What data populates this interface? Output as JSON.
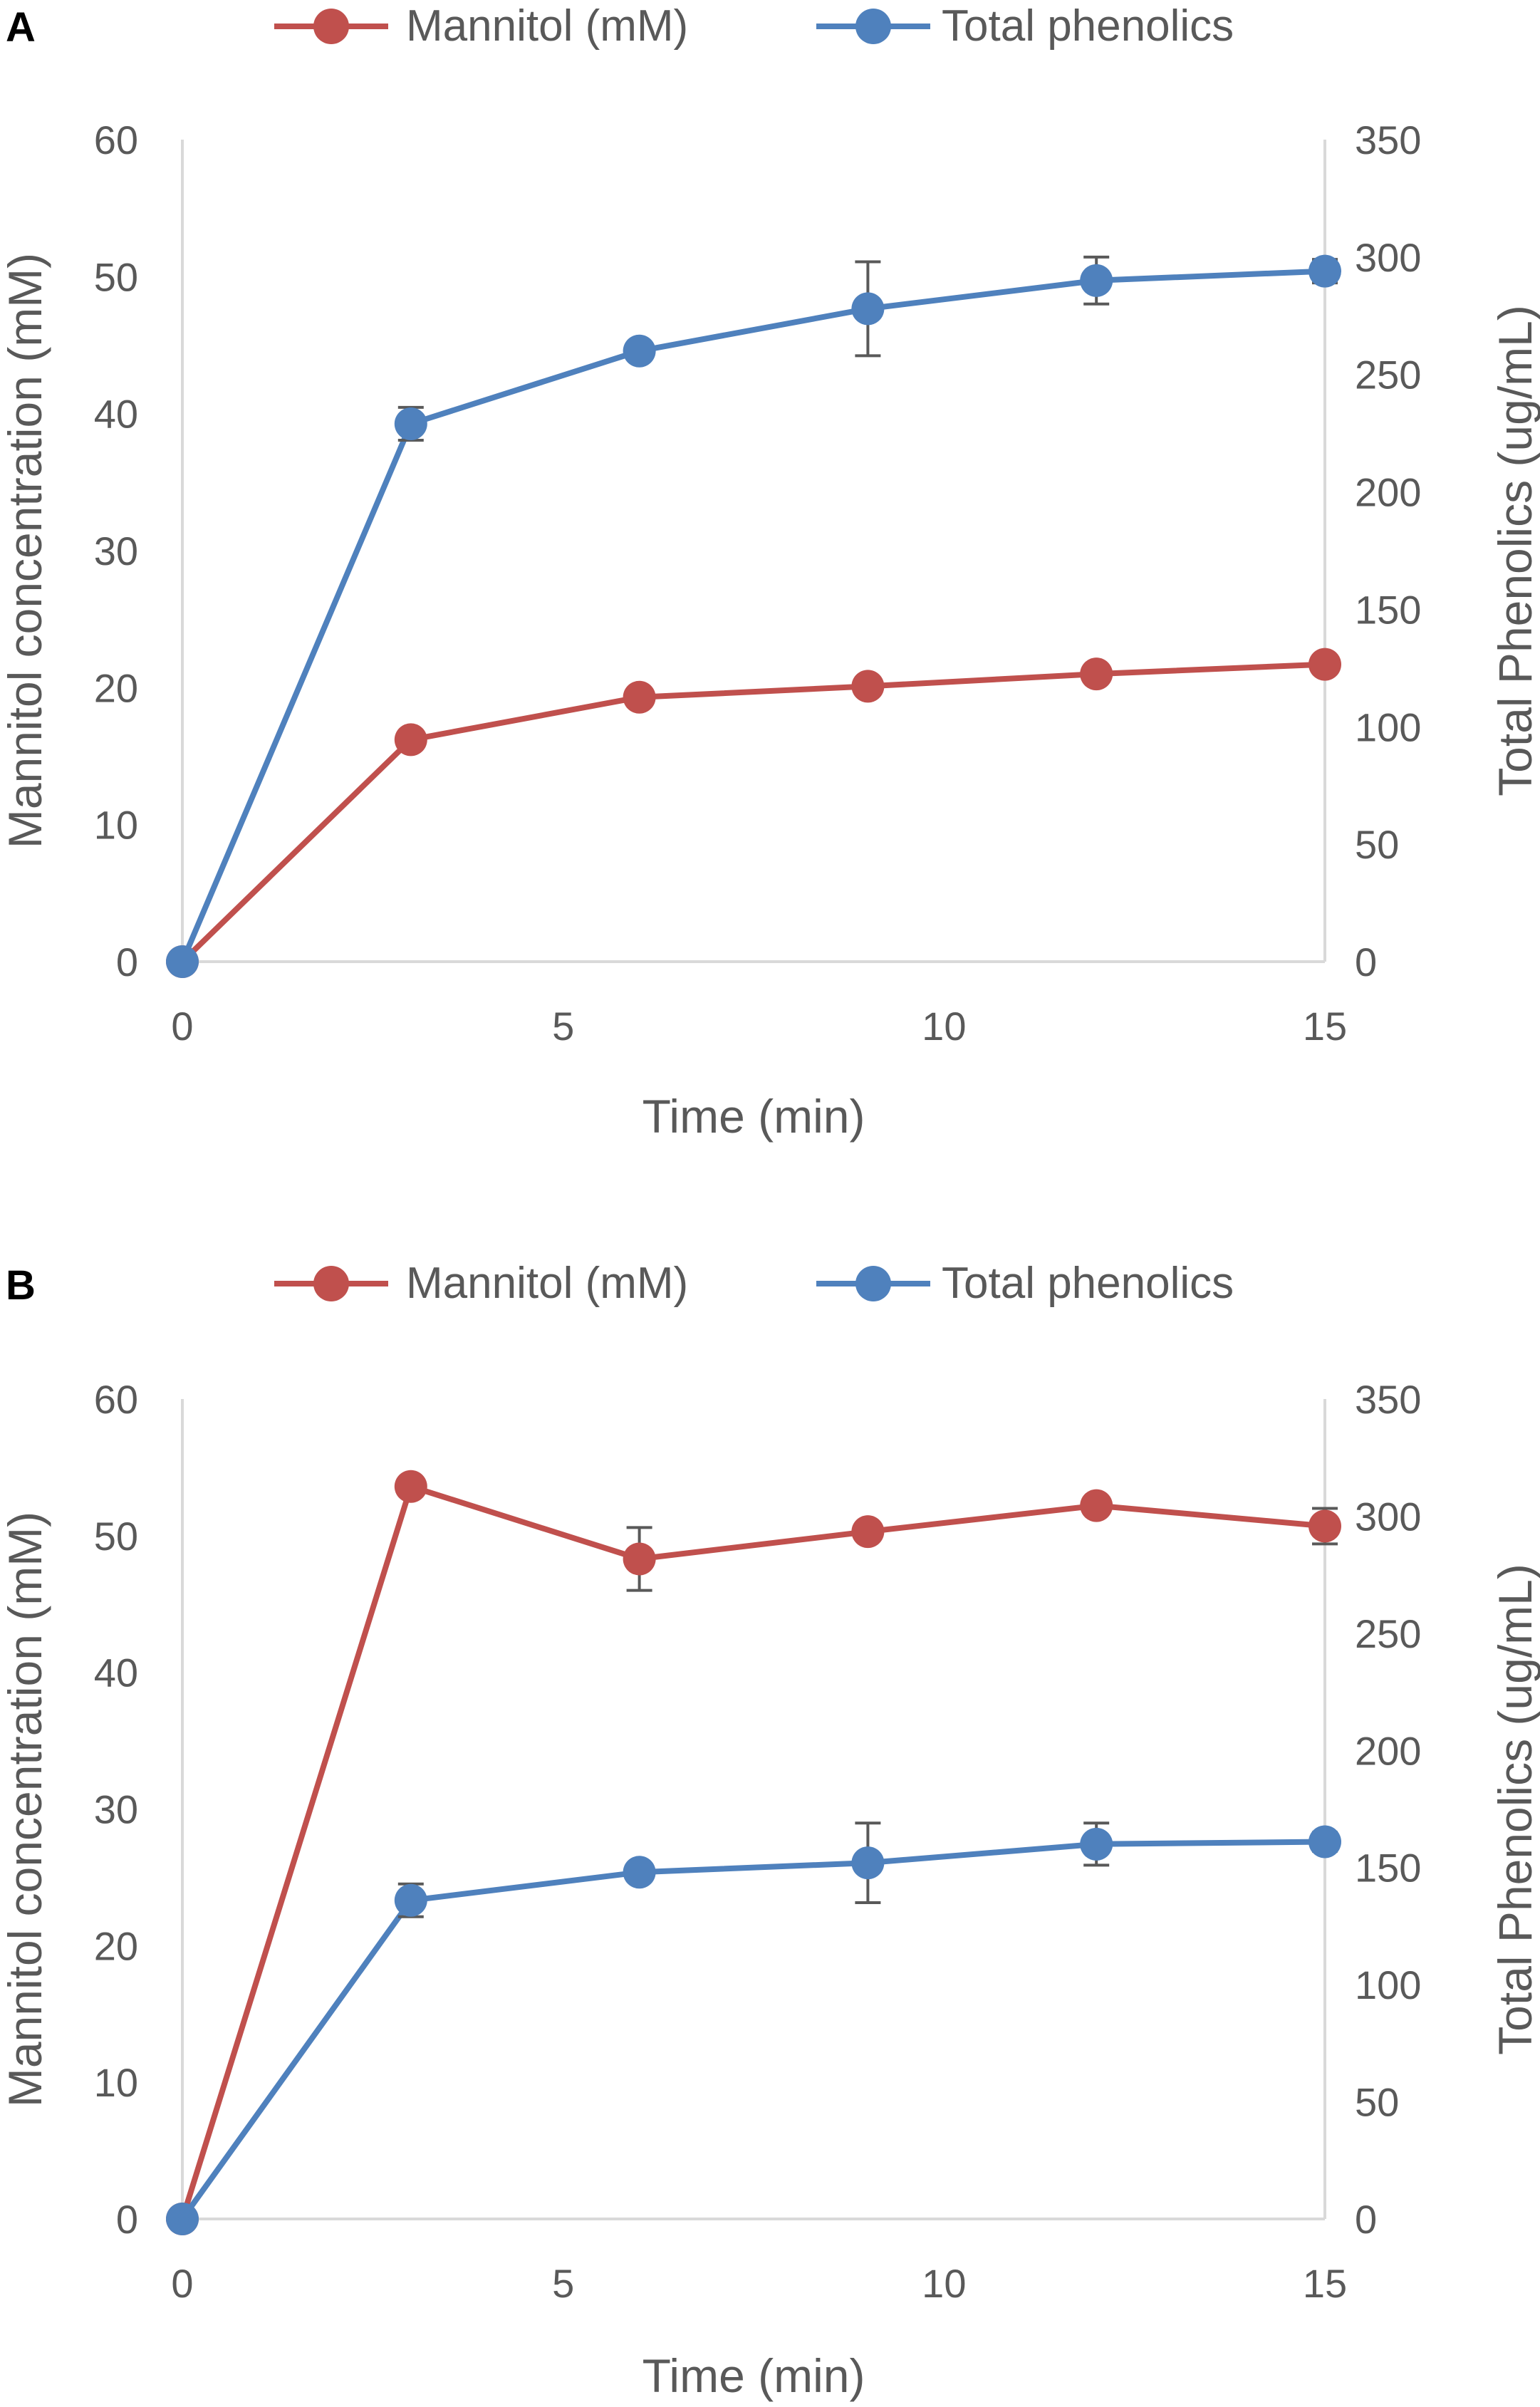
{
  "chart_data": [
    {
      "type": "line",
      "panel_label": "A",
      "xlabel": "Time (min)",
      "ylabel_left": "Mannitol concentration (mM)",
      "ylabel_right": "Total Phenolics (ug/mL)",
      "xlim": [
        0,
        15
      ],
      "ylim_left": [
        0,
        60
      ],
      "ylim_right": [
        0,
        350
      ],
      "x_ticks": [
        "0",
        "5",
        "10",
        "15"
      ],
      "y_left_ticks": [
        "0",
        "10",
        "20",
        "30",
        "40",
        "50",
        "60"
      ],
      "y_right_ticks": [
        "0",
        "50",
        "100",
        "150",
        "200",
        "250",
        "300",
        "350"
      ],
      "x": [
        0,
        3,
        6,
        9,
        12,
        15
      ],
      "series": [
        {
          "name": "Mannitol (mM)",
          "axis": "left",
          "color": "#c0504d",
          "values": [
            0,
            16.2,
            19.3,
            20.1,
            21.0,
            21.7
          ],
          "errors": [
            0,
            0,
            0,
            0,
            0,
            0
          ]
        },
        {
          "name": "Total phenolics",
          "axis": "right",
          "color": "#4f81bd",
          "values": [
            0,
            229,
            260,
            278,
            290,
            294
          ],
          "errors": [
            0,
            7,
            3,
            20,
            10,
            5
          ]
        }
      ]
    },
    {
      "type": "line",
      "panel_label": "B",
      "xlabel": "Time (min)",
      "ylabel_left": "Mannitol concentration (mM)",
      "ylabel_right": "Total Phenolics (ug/mL)",
      "xlim": [
        0,
        15
      ],
      "ylim_left": [
        0,
        60
      ],
      "ylim_right": [
        0,
        350
      ],
      "x_ticks": [
        "0",
        "5",
        "10",
        "15"
      ],
      "y_left_ticks": [
        "0",
        "10",
        "20",
        "30",
        "40",
        "50",
        "60"
      ],
      "y_right_ticks": [
        "0",
        "50",
        "100",
        "150",
        "200",
        "250",
        "300",
        "350"
      ],
      "x": [
        0,
        3,
        6,
        9,
        12,
        15
      ],
      "series": [
        {
          "name": "Mannitol (mM)",
          "axis": "left",
          "color": "#c0504d",
          "values": [
            0,
            53.6,
            48.3,
            50.3,
            52.2,
            50.7
          ],
          "errors": [
            0,
            0,
            2.3,
            0,
            0,
            1.3
          ]
        },
        {
          "name": "Total phenolics",
          "axis": "right",
          "color": "#4f81bd",
          "values": [
            0,
            136,
            148,
            152,
            160,
            161
          ],
          "errors": [
            0,
            7,
            3,
            17,
            9,
            4
          ]
        }
      ]
    }
  ]
}
